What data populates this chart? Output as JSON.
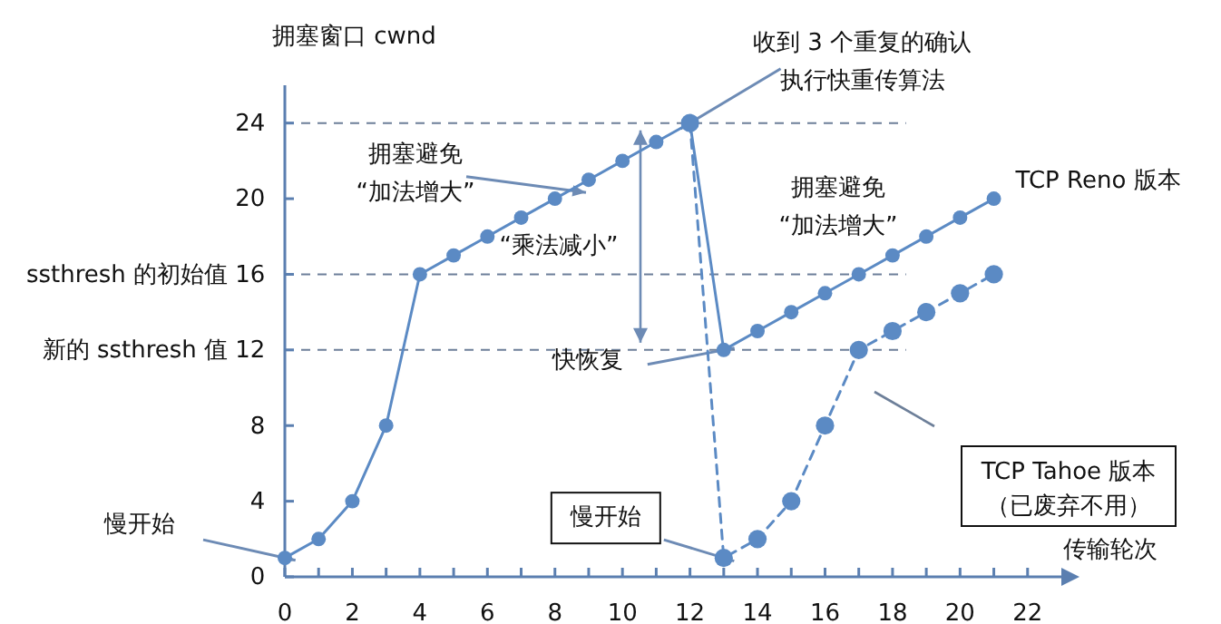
{
  "chart_data": {
    "type": "line",
    "xlabel": "传输轮次",
    "ylabel": "拥塞窗口 cwnd",
    "xlim": [
      0,
      23
    ],
    "ylim": [
      0,
      26
    ],
    "xticks": [
      0,
      {
        "value": 1,
        "label": null
      },
      2,
      {
        "value": 3,
        "label": null
      },
      4,
      {
        "value": 5,
        "label": null
      },
      6,
      {
        "value": 7,
        "label": null
      },
      8,
      {
        "value": 9,
        "label": null
      },
      10,
      {
        "value": 11,
        "label": null
      },
      12,
      {
        "value": 13,
        "label": null
      },
      14,
      {
        "value": 15,
        "label": null
      },
      16,
      {
        "value": 17,
        "label": null
      },
      18,
      {
        "value": 19,
        "label": null
      },
      20,
      {
        "value": 21,
        "label": null
      },
      22
    ],
    "yticks": [
      0,
      4,
      8,
      {
        "value": 12,
        "label": "新的 ssthresh 值 12"
      },
      {
        "value": 16,
        "label": "ssthresh 的初始值 16"
      },
      20,
      24
    ],
    "marker": "circle",
    "grid": false,
    "legend": false,
    "series": [
      {
        "name": "TCP Reno 版本",
        "color": "#5b8ac4",
        "line_style": "solid",
        "x": [
          0,
          1,
          2,
          3,
          4,
          5,
          6,
          7,
          8,
          9,
          10,
          11,
          12,
          13,
          14,
          15,
          16,
          17,
          18,
          19,
          20,
          21
        ],
        "values": [
          1,
          2,
          4,
          8,
          16,
          17,
          18,
          19,
          20,
          21,
          22,
          23,
          24,
          12,
          13,
          14,
          15,
          16,
          17,
          18,
          19,
          20
        ]
      },
      {
        "name": "TCP Tahoe 版本（已废弃不用）",
        "color": "#5b8ac4",
        "line_style": "dashed",
        "x": [
          12,
          13,
          14,
          15,
          16,
          17,
          18,
          19,
          20,
          21
        ],
        "values": [
          24,
          1,
          2,
          4,
          8,
          12,
          13,
          14,
          15,
          16
        ]
      }
    ],
    "ref_lines": [
      {
        "axis": "y",
        "value": 24,
        "color": "#6d7f99",
        "line_style": "dashed"
      },
      {
        "axis": "y",
        "value": 16,
        "color": "#6d7f99",
        "line_style": "dashed"
      },
      {
        "axis": "y",
        "value": 12,
        "color": "#6d7f99",
        "line_style": "dashed"
      }
    ],
    "annotations": [
      {
        "text": "收到 3 个重复的确认执行快重传算法",
        "x": 12,
        "y": 24
      },
      {
        "text": "拥塞避免“加法增大”",
        "x": 8.6,
        "y": 20.4
      },
      "“乘法减小”",
      "拥塞避免“加法增大”",
      {
        "text": "快恢复",
        "x": 13,
        "y": 12
      },
      {
        "text": "慢开始",
        "x": 0,
        "y": 1
      },
      {
        "text": "慢开始",
        "x": 13,
        "y": 1
      }
    ]
  }
}
